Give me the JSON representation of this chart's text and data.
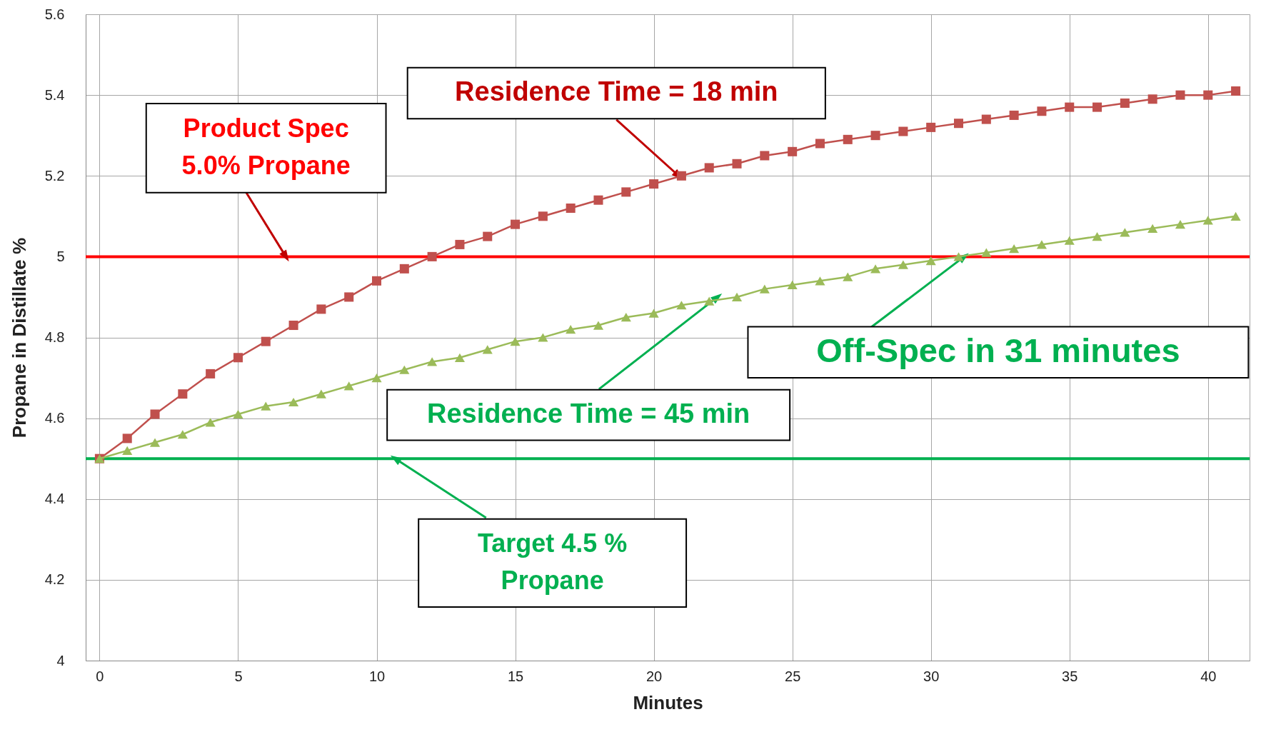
{
  "chart_data": {
    "type": "line",
    "xlabel": "Minutes",
    "ylabel": "Propane in Distillate %",
    "x": [
      0,
      1,
      2,
      3,
      4,
      5,
      6,
      7,
      8,
      9,
      10,
      11,
      12,
      13,
      14,
      15,
      16,
      17,
      18,
      19,
      20,
      21,
      22,
      23,
      24,
      25,
      26,
      27,
      28,
      29,
      30,
      31,
      32,
      33,
      34,
      35,
      36,
      37,
      38,
      39,
      40,
      41
    ],
    "series": [
      {
        "color": "#c0504d",
        "marker": "square",
        "values": [
          4.5,
          4.55,
          4.61,
          4.66,
          4.71,
          4.75,
          4.79,
          4.83,
          4.87,
          4.9,
          4.94,
          4.97,
          5.0,
          5.03,
          5.05,
          5.08,
          5.1,
          5.12,
          5.14,
          5.16,
          5.18,
          5.2,
          5.22,
          5.23,
          5.25,
          5.26,
          5.28,
          5.29,
          5.3,
          5.31,
          5.32,
          5.33,
          5.34,
          5.35,
          5.36,
          5.37,
          5.37,
          5.38,
          5.39,
          5.4,
          5.4,
          5.41
        ]
      },
      {
        "color": "#9bbb59",
        "marker": "triangle",
        "values": [
          4.5,
          4.52,
          4.54,
          4.56,
          4.59,
          4.61,
          4.63,
          4.64,
          4.66,
          4.68,
          4.7,
          4.72,
          4.74,
          4.75,
          4.77,
          4.79,
          4.8,
          4.82,
          4.83,
          4.85,
          4.86,
          4.88,
          4.89,
          4.9,
          4.92,
          4.93,
          4.94,
          4.95,
          4.97,
          4.98,
          4.99,
          5.0,
          5.01,
          5.02,
          5.03,
          5.04,
          5.05,
          5.06,
          5.07,
          5.08,
          5.09,
          5.1
        ]
      }
    ],
    "xlim": [
      -0.5,
      41.5
    ],
    "xticks": [
      0,
      5,
      10,
      15,
      20,
      25,
      30,
      35,
      40
    ],
    "ylim": [
      4,
      5.6
    ],
    "yticks": [
      4,
      4.2,
      4.4,
      4.6,
      4.8,
      5,
      5.2,
      5.4,
      5.6
    ],
    "grid": true,
    "legend": false,
    "line_style": "solid",
    "ref_lines": [
      {
        "axis": "y",
        "value": 5,
        "label": "Product Spec\n5.0% Propane",
        "color": "#ff0000"
      },
      {
        "axis": "y",
        "value": 4.5,
        "label": "Target 4.5 %\nPropane",
        "color": "#00b050"
      }
    ],
    "annotations": [
      {
        "text": "Residence Time = 18 min",
        "x": 20.9,
        "y": 5.2
      },
      {
        "text": "Residence Time = 45 min",
        "x": 22.3,
        "y": 4.9
      },
      {
        "text": "Off-Spec in 31 minutes",
        "x": 31.2,
        "y": 5.0
      }
    ]
  }
}
